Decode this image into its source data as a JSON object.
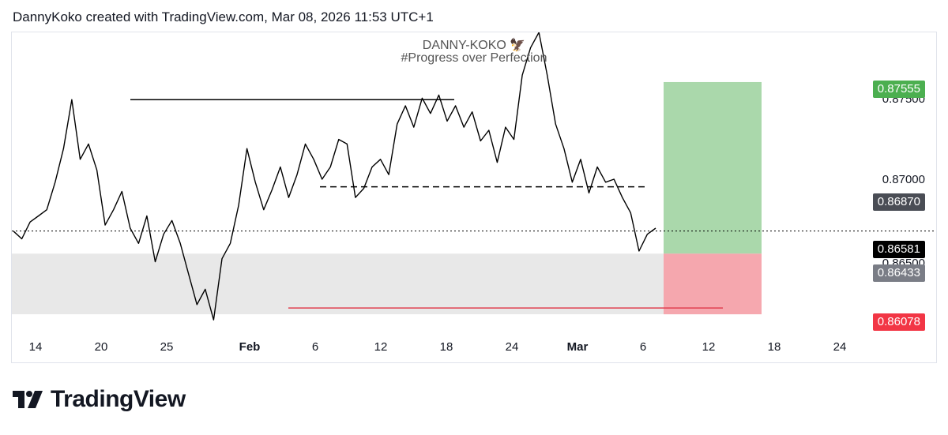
{
  "header": {
    "caption": "DannyKoko created with TradingView.com, Mar 08, 2026 11:53 UTC+1"
  },
  "watermark": {
    "line1": "DANNY-KOKO 🦅",
    "line2": "#Progress over Perfection"
  },
  "brand": {
    "name": "TradingView",
    "icon": "tradingview-logo-icon"
  },
  "colors": {
    "profit": "#a5d6a7",
    "loss": "#f5a3ab",
    "profit_tag": "#4caf50",
    "loss_tag": "#f23645",
    "demand": "#e8e8e8",
    "price": "#000000",
    "entry_tag": "#7a7d86",
    "level_tag": "#4a4d55"
  },
  "chart_data": {
    "type": "line",
    "title": "DANNY-KOKO 🦅",
    "subtitle": "#Progress over Perfection",
    "x_ticks": [
      "14",
      "20",
      "25",
      "Feb",
      "6",
      "12",
      "18",
      "24",
      "Mar",
      "6",
      "12",
      "18",
      "24"
    ],
    "y_ticks": [
      "0.87500",
      "0.87000",
      "0.86500"
    ],
    "ylim": [
      0.8597,
      0.8788
    ],
    "price_tags": {
      "take_profit": "0.87555",
      "level": "0.86870",
      "current": "0.86581",
      "entry": "0.86433",
      "stop_loss": "0.86078"
    },
    "series": [
      {
        "values": [
          0.8658,
          0.8653,
          0.8664,
          0.8668,
          0.8672,
          0.869,
          0.8712,
          0.8744,
          0.8705,
          0.8715,
          0.8698,
          0.8662,
          0.8672,
          0.8684,
          0.866,
          0.865,
          0.8668,
          0.8638,
          0.8656,
          0.8665,
          0.865,
          0.863,
          0.861,
          0.862,
          0.86,
          0.864,
          0.865,
          0.8675,
          0.8712,
          0.869,
          0.8672,
          0.8685,
          0.87,
          0.868,
          0.8695,
          0.8715,
          0.8705,
          0.8692,
          0.87,
          0.8718,
          0.8715,
          0.868,
          0.8686,
          0.87,
          0.8705,
          0.8695,
          0.8728,
          0.874,
          0.8726,
          0.8745,
          0.8735,
          0.8747,
          0.873,
          0.874,
          0.8726,
          0.8736,
          0.8717,
          0.8724,
          0.8703,
          0.8726,
          0.8718,
          0.876,
          0.8778,
          0.8788,
          0.876,
          0.8728,
          0.8712,
          0.869,
          0.8705,
          0.8683,
          0.87,
          0.869,
          0.8692,
          0.868,
          0.867,
          0.8645,
          0.8656,
          0.866
        ]
      }
    ]
  }
}
